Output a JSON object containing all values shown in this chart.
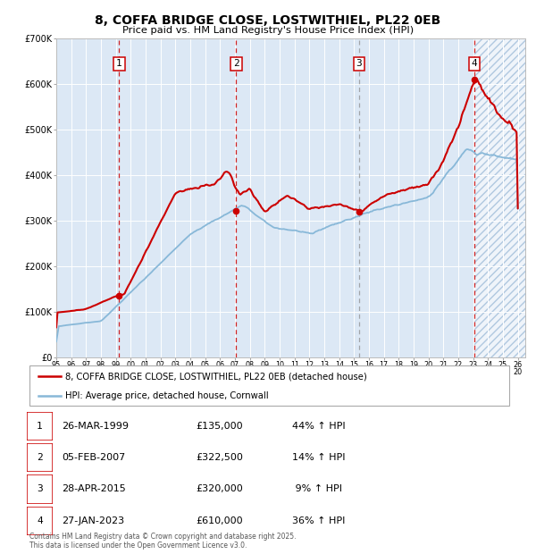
{
  "title_line1": "8, COFFA BRIDGE CLOSE, LOSTWITHIEL, PL22 0EB",
  "title_line2": "Price paid vs. HM Land Registry's House Price Index (HPI)",
  "bg_color": "#dce8f5",
  "hatch_color": "#b8cfe0",
  "grid_color": "#ffffff",
  "red_line_color": "#cc0000",
  "blue_line_color": "#88b8d8",
  "ylim": [
    0,
    700000
  ],
  "yticks": [
    0,
    100000,
    200000,
    300000,
    400000,
    500000,
    600000,
    700000
  ],
  "ytick_labels": [
    "£0",
    "£100K",
    "£200K",
    "£300K",
    "£400K",
    "£500K",
    "£600K",
    "£700K"
  ],
  "x_start_year": 1995,
  "x_end_year": 2026,
  "sale_dates": [
    1999.23,
    2007.09,
    2015.32,
    2023.07
  ],
  "sale_prices": [
    135000,
    322500,
    320000,
    610000
  ],
  "sale_labels": [
    "1",
    "2",
    "3",
    "4"
  ],
  "vline_dates_red": [
    1999.23,
    2007.09,
    2023.07
  ],
  "vline_dates_gray": [
    2015.32
  ],
  "legend_line1": "8, COFFA BRIDGE CLOSE, LOSTWITHIEL, PL22 0EB (detached house)",
  "legend_line2": "HPI: Average price, detached house, Cornwall",
  "table_data": [
    [
      "1",
      "26-MAR-1999",
      "£135,000",
      "44% ↑ HPI"
    ],
    [
      "2",
      "05-FEB-2007",
      "£322,500",
      "14% ↑ HPI"
    ],
    [
      "3",
      "28-APR-2015",
      "£320,000",
      " 9% ↑ HPI"
    ],
    [
      "4",
      "27-JAN-2023",
      "£610,000",
      "36% ↑ HPI"
    ]
  ],
  "footer": "Contains HM Land Registry data © Crown copyright and database right 2025.\nThis data is licensed under the Open Government Licence v3.0."
}
